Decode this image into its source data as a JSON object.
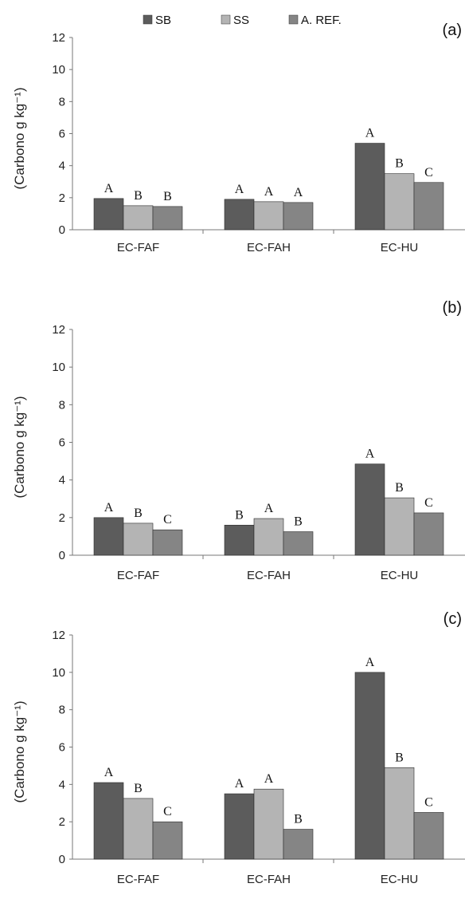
{
  "legend": [
    {
      "name": "SB",
      "color": "#5c5c5c"
    },
    {
      "name": "SS",
      "color": "#b4b4b4"
    },
    {
      "name": "A. REF.",
      "color": "#858585"
    }
  ],
  "chart_data": [
    {
      "type": "bar",
      "panel_label": "(a)",
      "categories": [
        "EC-FAF",
        "EC-FAH",
        "EC-HU"
      ],
      "series": [
        {
          "name": "SB",
          "values": [
            1.95,
            1.9,
            5.4
          ]
        },
        {
          "name": "SS",
          "values": [
            1.5,
            1.75,
            3.5
          ]
        },
        {
          "name": "A. REF.",
          "values": [
            1.45,
            1.7,
            2.95
          ]
        }
      ],
      "significance": [
        [
          "A",
          "B",
          "B"
        ],
        [
          "A",
          "A",
          "A"
        ],
        [
          "A",
          "B",
          "C"
        ]
      ],
      "ylabel": "(Carbono g kg⁻¹)",
      "ylim": [
        0,
        12
      ],
      "yticks": [
        "0",
        "2",
        "4",
        "6",
        "8",
        "10",
        "12"
      ]
    },
    {
      "type": "bar",
      "panel_label": "(b)",
      "categories": [
        "EC-FAF",
        "EC-FAH",
        "EC-HU"
      ],
      "series": [
        {
          "name": "SB",
          "values": [
            2.0,
            1.6,
            4.85
          ]
        },
        {
          "name": "SS",
          "values": [
            1.7,
            1.95,
            3.05
          ]
        },
        {
          "name": "A. REF.",
          "values": [
            1.35,
            1.25,
            2.25
          ]
        }
      ],
      "significance": [
        [
          "A",
          "B",
          "C"
        ],
        [
          "B",
          "A",
          "B"
        ],
        [
          "A",
          "B",
          "C"
        ]
      ],
      "ylabel": "(Carbono g kg⁻¹)",
      "ylim": [
        0,
        12
      ],
      "yticks": [
        "0",
        "2",
        "4",
        "6",
        "8",
        "10",
        "12"
      ]
    },
    {
      "type": "bar",
      "panel_label": "(c)",
      "categories": [
        "EC-FAF",
        "EC-FAH",
        "EC-HU"
      ],
      "series": [
        {
          "name": "SB",
          "values": [
            4.1,
            3.5,
            10.0
          ]
        },
        {
          "name": "SS",
          "values": [
            3.25,
            3.75,
            4.9
          ]
        },
        {
          "name": "A. REF.",
          "values": [
            2.0,
            1.6,
            2.5
          ]
        }
      ],
      "significance": [
        [
          "A",
          "B",
          "C"
        ],
        [
          "A",
          "A",
          "B"
        ],
        [
          "A",
          "B",
          "C"
        ]
      ],
      "ylabel": "(Carbono g kg⁻¹)",
      "ylim": [
        0,
        12
      ],
      "yticks": [
        "0",
        "2",
        "4",
        "6",
        "8",
        "10",
        "12"
      ]
    }
  ]
}
